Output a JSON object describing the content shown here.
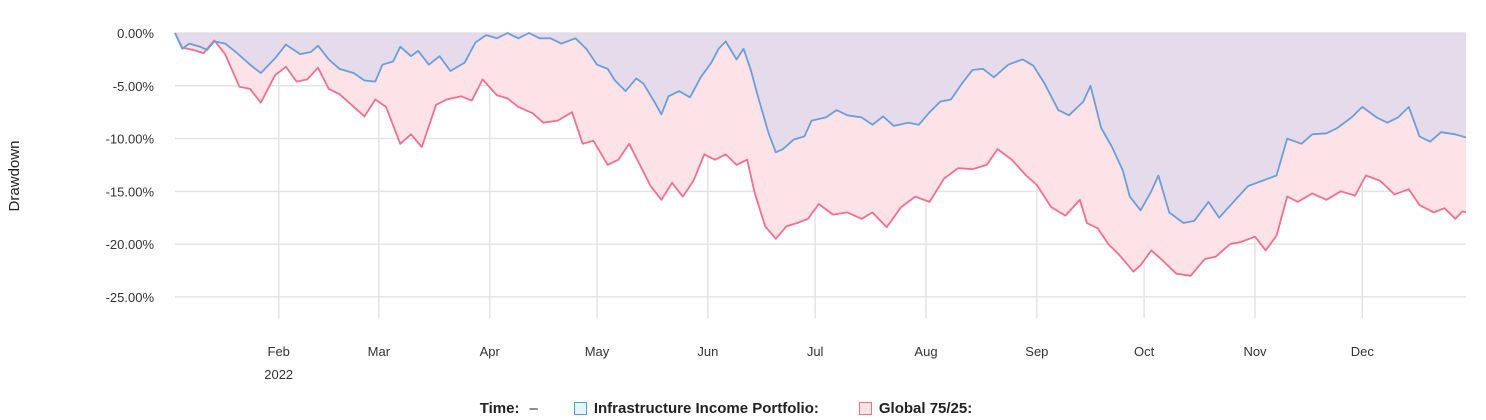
{
  "chart_data": {
    "type": "area",
    "ylabel": "Drawdown",
    "y_ticks": [
      "0.00%",
      "-5.00%",
      "-10.00%",
      "-15.00%",
      "-20.00%",
      "-25.00%"
    ],
    "ylim": [
      -27,
      0
    ],
    "x_ticks": [
      {
        "label": "Feb",
        "date": "2022-02-01",
        "year": "2022"
      },
      {
        "label": "Mar",
        "date": "2022-03-01"
      },
      {
        "label": "Apr",
        "date": "2022-04-01"
      },
      {
        "label": "May",
        "date": "2022-05-01"
      },
      {
        "label": "Jun",
        "date": "2022-06-01"
      },
      {
        "label": "Jul",
        "date": "2022-07-01"
      },
      {
        "label": "Aug",
        "date": "2022-08-01"
      },
      {
        "label": "Sep",
        "date": "2022-09-01"
      },
      {
        "label": "Oct",
        "date": "2022-10-01"
      },
      {
        "label": "Nov",
        "date": "2022-11-01"
      },
      {
        "label": "Dec",
        "date": "2022-12-01"
      }
    ],
    "xlim": [
      "2022-01-03",
      "2022-12-30"
    ],
    "grid": true,
    "legend_position": "bottom",
    "series": [
      {
        "name": "Infrastructure Income Portfolio",
        "color": "#6a9fd8",
        "fill": "#e6dbeb",
        "points": [
          [
            "2022-01-03",
            0.0
          ],
          [
            "2022-01-05",
            -1.5
          ],
          [
            "2022-01-07",
            -1.0
          ],
          [
            "2022-01-10",
            -1.3
          ],
          [
            "2022-01-12",
            -1.6
          ],
          [
            "2022-01-14",
            -0.8
          ],
          [
            "2022-01-17",
            -1.0
          ],
          [
            "2022-01-20",
            -1.8
          ],
          [
            "2022-01-24",
            -3.0
          ],
          [
            "2022-01-27",
            -3.8
          ],
          [
            "2022-01-31",
            -2.4
          ],
          [
            "2022-02-03",
            -1.1
          ],
          [
            "2022-02-07",
            -2.0
          ],
          [
            "2022-02-10",
            -1.8
          ],
          [
            "2022-02-12",
            -1.2
          ],
          [
            "2022-02-15",
            -2.5
          ],
          [
            "2022-02-18",
            -3.4
          ],
          [
            "2022-02-22",
            -3.8
          ],
          [
            "2022-02-25",
            -4.5
          ],
          [
            "2022-02-28",
            -4.6
          ],
          [
            "2022-03-02",
            -3.0
          ],
          [
            "2022-03-05",
            -2.7
          ],
          [
            "2022-03-07",
            -1.3
          ],
          [
            "2022-03-10",
            -2.2
          ],
          [
            "2022-03-12",
            -1.7
          ],
          [
            "2022-03-15",
            -3.0
          ],
          [
            "2022-03-18",
            -2.2
          ],
          [
            "2022-03-21",
            -3.6
          ],
          [
            "2022-03-25",
            -2.8
          ],
          [
            "2022-03-28",
            -0.9
          ],
          [
            "2022-03-31",
            -0.2
          ],
          [
            "2022-04-03",
            -0.5
          ],
          [
            "2022-04-06",
            0.0
          ],
          [
            "2022-04-09",
            -0.5
          ],
          [
            "2022-04-12",
            0.0
          ],
          [
            "2022-04-15",
            -0.5
          ],
          [
            "2022-04-18",
            -0.5
          ],
          [
            "2022-04-21",
            -1.0
          ],
          [
            "2022-04-25",
            -0.5
          ],
          [
            "2022-04-28",
            -1.5
          ],
          [
            "2022-05-01",
            -3.0
          ],
          [
            "2022-05-04",
            -3.4
          ],
          [
            "2022-05-06",
            -4.5
          ],
          [
            "2022-05-09",
            -5.5
          ],
          [
            "2022-05-12",
            -4.3
          ],
          [
            "2022-05-14",
            -4.8
          ],
          [
            "2022-05-17",
            -6.5
          ],
          [
            "2022-05-19",
            -7.7
          ],
          [
            "2022-05-21",
            -6.0
          ],
          [
            "2022-05-24",
            -5.5
          ],
          [
            "2022-05-27",
            -6.1
          ],
          [
            "2022-05-30",
            -4.2
          ],
          [
            "2022-06-02",
            -2.8
          ],
          [
            "2022-06-04",
            -1.5
          ],
          [
            "2022-06-06",
            -0.8
          ],
          [
            "2022-06-09",
            -2.5
          ],
          [
            "2022-06-11",
            -1.5
          ],
          [
            "2022-06-13",
            -3.5
          ],
          [
            "2022-06-15",
            -6.0
          ],
          [
            "2022-06-18",
            -9.5
          ],
          [
            "2022-06-20",
            -11.3
          ],
          [
            "2022-06-22",
            -11.0
          ],
          [
            "2022-06-25",
            -10.1
          ],
          [
            "2022-06-28",
            -9.8
          ],
          [
            "2022-06-30",
            -8.3
          ],
          [
            "2022-07-04",
            -8.0
          ],
          [
            "2022-07-07",
            -7.3
          ],
          [
            "2022-07-10",
            -7.8
          ],
          [
            "2022-07-14",
            -8.0
          ],
          [
            "2022-07-17",
            -8.7
          ],
          [
            "2022-07-20",
            -7.9
          ],
          [
            "2022-07-23",
            -8.8
          ],
          [
            "2022-07-27",
            -8.5
          ],
          [
            "2022-07-30",
            -8.7
          ],
          [
            "2022-08-02",
            -7.5
          ],
          [
            "2022-08-05",
            -6.5
          ],
          [
            "2022-08-08",
            -6.3
          ],
          [
            "2022-08-11",
            -4.8
          ],
          [
            "2022-08-14",
            -3.5
          ],
          [
            "2022-08-17",
            -3.4
          ],
          [
            "2022-08-20",
            -4.2
          ],
          [
            "2022-08-24",
            -3.0
          ],
          [
            "2022-08-28",
            -2.5
          ],
          [
            "2022-08-31",
            -3.1
          ],
          [
            "2022-09-03",
            -4.7
          ],
          [
            "2022-09-07",
            -7.3
          ],
          [
            "2022-09-10",
            -7.8
          ],
          [
            "2022-09-14",
            -6.5
          ],
          [
            "2022-09-16",
            -5.0
          ],
          [
            "2022-09-19",
            -9.0
          ],
          [
            "2022-09-22",
            -10.8
          ],
          [
            "2022-09-25",
            -13.0
          ],
          [
            "2022-09-27",
            -15.5
          ],
          [
            "2022-09-30",
            -16.8
          ],
          [
            "2022-10-03",
            -15.0
          ],
          [
            "2022-10-05",
            -13.5
          ],
          [
            "2022-10-08",
            -17.0
          ],
          [
            "2022-10-12",
            -18.0
          ],
          [
            "2022-10-15",
            -17.8
          ],
          [
            "2022-10-19",
            -16.0
          ],
          [
            "2022-10-22",
            -17.5
          ],
          [
            "2022-10-26",
            -16.0
          ],
          [
            "2022-10-30",
            -14.5
          ],
          [
            "2022-11-03",
            -14.0
          ],
          [
            "2022-11-07",
            -13.5
          ],
          [
            "2022-11-10",
            -10.0
          ],
          [
            "2022-11-14",
            -10.5
          ],
          [
            "2022-11-17",
            -9.6
          ],
          [
            "2022-11-21",
            -9.5
          ],
          [
            "2022-11-24",
            -9.0
          ],
          [
            "2022-11-28",
            -8.0
          ],
          [
            "2022-12-01",
            -7.0
          ],
          [
            "2022-12-05",
            -8.0
          ],
          [
            "2022-12-08",
            -8.5
          ],
          [
            "2022-12-11",
            -8.0
          ],
          [
            "2022-12-14",
            -7.0
          ],
          [
            "2022-12-17",
            -9.8
          ],
          [
            "2022-12-20",
            -10.3
          ],
          [
            "2022-12-23",
            -9.4
          ],
          [
            "2022-12-27",
            -9.6
          ],
          [
            "2022-12-30",
            -9.9
          ]
        ]
      },
      {
        "name": "Global 75/25",
        "color": "#f07090",
        "fill": "#fde2e8",
        "points": [
          [
            "2022-01-03",
            0.0
          ],
          [
            "2022-01-05",
            -1.4
          ],
          [
            "2022-01-08",
            -1.6
          ],
          [
            "2022-01-11",
            -1.9
          ],
          [
            "2022-01-14",
            -0.7
          ],
          [
            "2022-01-17",
            -2.0
          ],
          [
            "2022-01-21",
            -5.1
          ],
          [
            "2022-01-24",
            -5.3
          ],
          [
            "2022-01-27",
            -6.6
          ],
          [
            "2022-01-31",
            -4.0
          ],
          [
            "2022-02-03",
            -3.2
          ],
          [
            "2022-02-06",
            -4.6
          ],
          [
            "2022-02-09",
            -4.4
          ],
          [
            "2022-02-12",
            -3.3
          ],
          [
            "2022-02-15",
            -5.3
          ],
          [
            "2022-02-18",
            -5.8
          ],
          [
            "2022-02-22",
            -7.0
          ],
          [
            "2022-02-25",
            -7.9
          ],
          [
            "2022-02-28",
            -6.3
          ],
          [
            "2022-03-03",
            -7.0
          ],
          [
            "2022-03-07",
            -10.5
          ],
          [
            "2022-03-10",
            -9.6
          ],
          [
            "2022-03-13",
            -10.8
          ],
          [
            "2022-03-17",
            -6.8
          ],
          [
            "2022-03-20",
            -6.3
          ],
          [
            "2022-03-24",
            -6.0
          ],
          [
            "2022-03-27",
            -6.4
          ],
          [
            "2022-03-30",
            -4.4
          ],
          [
            "2022-04-03",
            -5.9
          ],
          [
            "2022-04-06",
            -6.2
          ],
          [
            "2022-04-09",
            -7.0
          ],
          [
            "2022-04-13",
            -7.6
          ],
          [
            "2022-04-16",
            -8.5
          ],
          [
            "2022-04-20",
            -8.3
          ],
          [
            "2022-04-24",
            -7.5
          ],
          [
            "2022-04-27",
            -10.5
          ],
          [
            "2022-04-30",
            -10.2
          ],
          [
            "2022-05-04",
            -12.5
          ],
          [
            "2022-05-07",
            -12.0
          ],
          [
            "2022-05-10",
            -10.5
          ],
          [
            "2022-05-13",
            -12.5
          ],
          [
            "2022-05-16",
            -14.5
          ],
          [
            "2022-05-19",
            -15.8
          ],
          [
            "2022-05-22",
            -14.2
          ],
          [
            "2022-05-25",
            -15.5
          ],
          [
            "2022-05-28",
            -14.0
          ],
          [
            "2022-05-31",
            -11.5
          ],
          [
            "2022-06-03",
            -12.0
          ],
          [
            "2022-06-06",
            -11.5
          ],
          [
            "2022-06-09",
            -12.5
          ],
          [
            "2022-06-12",
            -12.0
          ],
          [
            "2022-06-14",
            -15.0
          ],
          [
            "2022-06-17",
            -18.3
          ],
          [
            "2022-06-20",
            -19.5
          ],
          [
            "2022-06-23",
            -18.3
          ],
          [
            "2022-06-26",
            -18.0
          ],
          [
            "2022-06-29",
            -17.6
          ],
          [
            "2022-07-02",
            -16.2
          ],
          [
            "2022-07-06",
            -17.2
          ],
          [
            "2022-07-10",
            -17.0
          ],
          [
            "2022-07-14",
            -17.6
          ],
          [
            "2022-07-17",
            -17.0
          ],
          [
            "2022-07-21",
            -18.4
          ],
          [
            "2022-07-25",
            -16.5
          ],
          [
            "2022-07-29",
            -15.5
          ],
          [
            "2022-08-02",
            -16.0
          ],
          [
            "2022-08-06",
            -13.8
          ],
          [
            "2022-08-10",
            -12.8
          ],
          [
            "2022-08-14",
            -12.9
          ],
          [
            "2022-08-18",
            -12.5
          ],
          [
            "2022-08-21",
            -11.0
          ],
          [
            "2022-08-25",
            -12.0
          ],
          [
            "2022-08-29",
            -13.5
          ],
          [
            "2022-09-01",
            -14.4
          ],
          [
            "2022-09-05",
            -16.5
          ],
          [
            "2022-09-09",
            -17.3
          ],
          [
            "2022-09-13",
            -15.8
          ],
          [
            "2022-09-15",
            -18.0
          ],
          [
            "2022-09-18",
            -18.5
          ],
          [
            "2022-09-21",
            -20.0
          ],
          [
            "2022-09-24",
            -21.0
          ],
          [
            "2022-09-28",
            -22.6
          ],
          [
            "2022-09-30",
            -22.0
          ],
          [
            "2022-10-03",
            -20.6
          ],
          [
            "2022-10-06",
            -21.5
          ],
          [
            "2022-10-10",
            -22.8
          ],
          [
            "2022-10-14",
            -23.0
          ],
          [
            "2022-10-18",
            -21.4
          ],
          [
            "2022-10-21",
            -21.2
          ],
          [
            "2022-10-25",
            -20.0
          ],
          [
            "2022-10-28",
            -19.8
          ],
          [
            "2022-11-01",
            -19.3
          ],
          [
            "2022-11-04",
            -20.6
          ],
          [
            "2022-11-07",
            -19.2
          ],
          [
            "2022-11-10",
            -15.5
          ],
          [
            "2022-11-13",
            -16.0
          ],
          [
            "2022-11-17",
            -15.2
          ],
          [
            "2022-11-21",
            -15.8
          ],
          [
            "2022-11-25",
            -15.0
          ],
          [
            "2022-11-29",
            -15.4
          ],
          [
            "2022-12-02",
            -13.5
          ],
          [
            "2022-12-06",
            -14.0
          ],
          [
            "2022-12-10",
            -15.3
          ],
          [
            "2022-12-14",
            -14.8
          ],
          [
            "2022-12-17",
            -16.3
          ],
          [
            "2022-12-21",
            -17.0
          ],
          [
            "2022-12-24",
            -16.6
          ],
          [
            "2022-12-27",
            -17.6
          ],
          [
            "2022-12-29",
            -16.9
          ],
          [
            "2022-12-30",
            -17.0
          ]
        ]
      }
    ]
  },
  "legend": {
    "time_label": "Time:",
    "time_value": "–",
    "items": [
      {
        "label": "Infrastructure Income Portfolio:",
        "color": "#3ea6e0",
        "fill": "#e6f3fb"
      },
      {
        "label": "Global 75/25:",
        "color": "#f07090",
        "fill": "#fde2e8"
      }
    ]
  }
}
